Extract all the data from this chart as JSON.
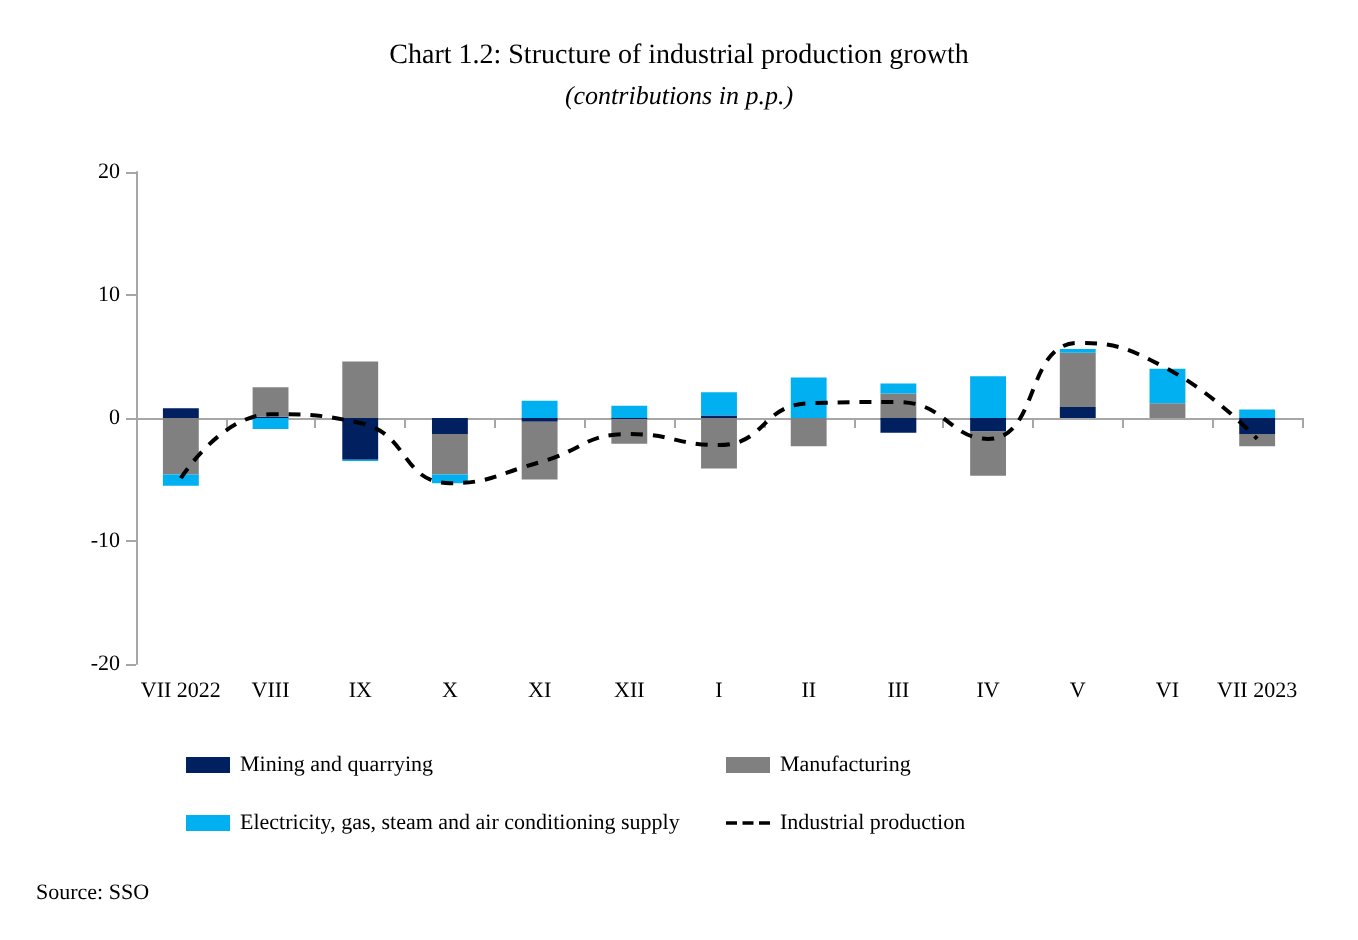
{
  "chart_data": {
    "type": "bar",
    "title": "Chart 1.2: Structure of industrial production growth",
    "subtitle": "(contributions in p.p.)",
    "categories": [
      "VII 2022",
      "VIII",
      "IX",
      "X",
      "XI",
      "XII",
      "I",
      "II",
      "III",
      "IV",
      "V",
      "VI",
      "VII 2023"
    ],
    "stacked": true,
    "series": [
      {
        "name": "Mining and quarrying",
        "color": "#002060",
        "values": [
          0.8,
          0.1,
          -3.4,
          -1.3,
          -0.3,
          -0.1,
          0.2,
          null,
          -1.2,
          -1.1,
          0.9,
          null,
          -1.3
        ]
      },
      {
        "name": "Manufacturing",
        "color": "#808080",
        "values": [
          -4.6,
          2.4,
          4.6,
          -3.3,
          -4.7,
          -2.0,
          -4.1,
          -2.3,
          2.0,
          -3.6,
          4.4,
          1.2,
          -1.0
        ]
      },
      {
        "name": "Electricity, gas, steam and air conditioning supply",
        "color": "#00b0f0",
        "values": [
          -0.9,
          -0.9,
          -0.1,
          -0.7,
          1.4,
          1.0,
          1.9,
          3.3,
          0.8,
          3.4,
          0.3,
          2.8,
          0.7
        ]
      },
      {
        "name": "Industrial production",
        "type": "line",
        "color": "#000000",
        "line_style": "dashed",
        "marker": "none",
        "values": [
          -4.9,
          0.3,
          -0.4,
          -5.3,
          -3.6,
          -1.3,
          -2.2,
          1.2,
          1.3,
          -1.7,
          6.1,
          4.0,
          -1.7
        ]
      }
    ],
    "ylim": [
      -20,
      20
    ],
    "yticks": [
      -20,
      -10,
      0,
      10,
      20
    ],
    "legend": "bottom",
    "annotations": [
      "Source: SSO"
    ]
  }
}
